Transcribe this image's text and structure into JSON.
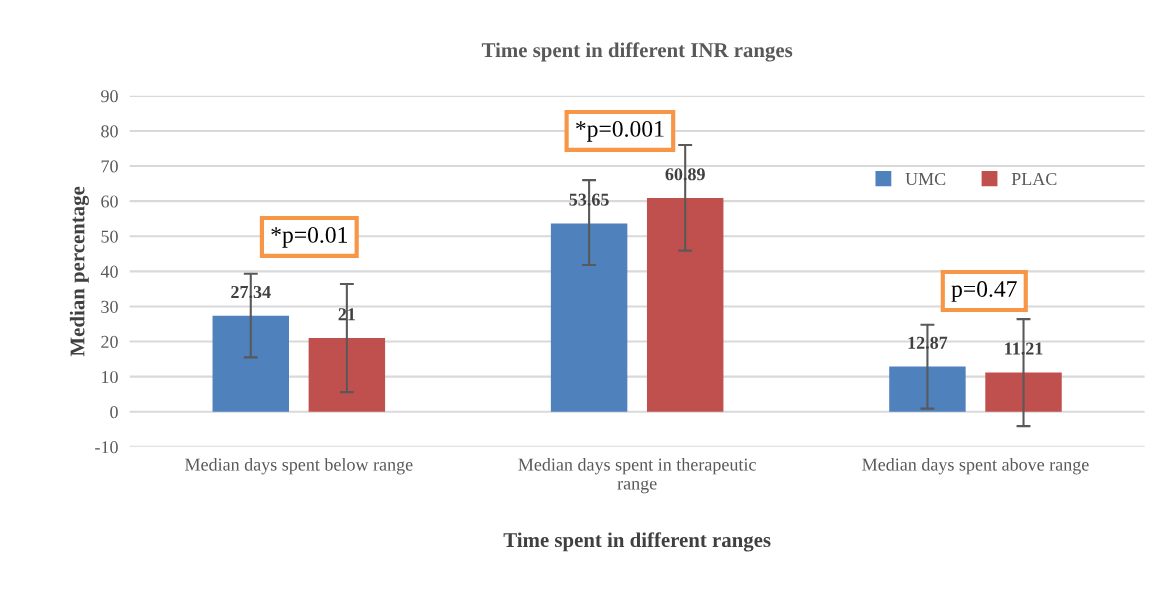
{
  "chart_data": {
    "type": "bar",
    "title": "Time spent in different INR ranges",
    "xlabel": "Time spent in different ranges",
    "ylabel": "Median percentage",
    "categories": [
      "Median days spent below range",
      "Median days spent in therapeutic\nrange",
      "Median days spent above range"
    ],
    "series": [
      {
        "name": "UMC",
        "color": "#4f81bd",
        "values": [
          27.34,
          53.65,
          12.87
        ],
        "errors": [
          [
            15.5,
            39.3
          ],
          [
            41.8,
            66.0
          ],
          [
            0.9,
            24.8
          ]
        ]
      },
      {
        "name": "PLAC",
        "color": "#c0504d",
        "values": [
          21,
          60.89,
          11.21
        ],
        "errors": [
          [
            5.6,
            36.4
          ],
          [
            45.9,
            76
          ],
          [
            -4.1,
            26.4
          ]
        ]
      }
    ],
    "ylim": [
      -10,
      90
    ],
    "yticks": [
      -10,
      0,
      10,
      20,
      30,
      40,
      50,
      60,
      70,
      80,
      90
    ],
    "grid": "y",
    "legend": "top right",
    "data_labels": true,
    "annotations": [
      "*p=0.01",
      "*p=0.001",
      "p=0.47"
    ]
  }
}
